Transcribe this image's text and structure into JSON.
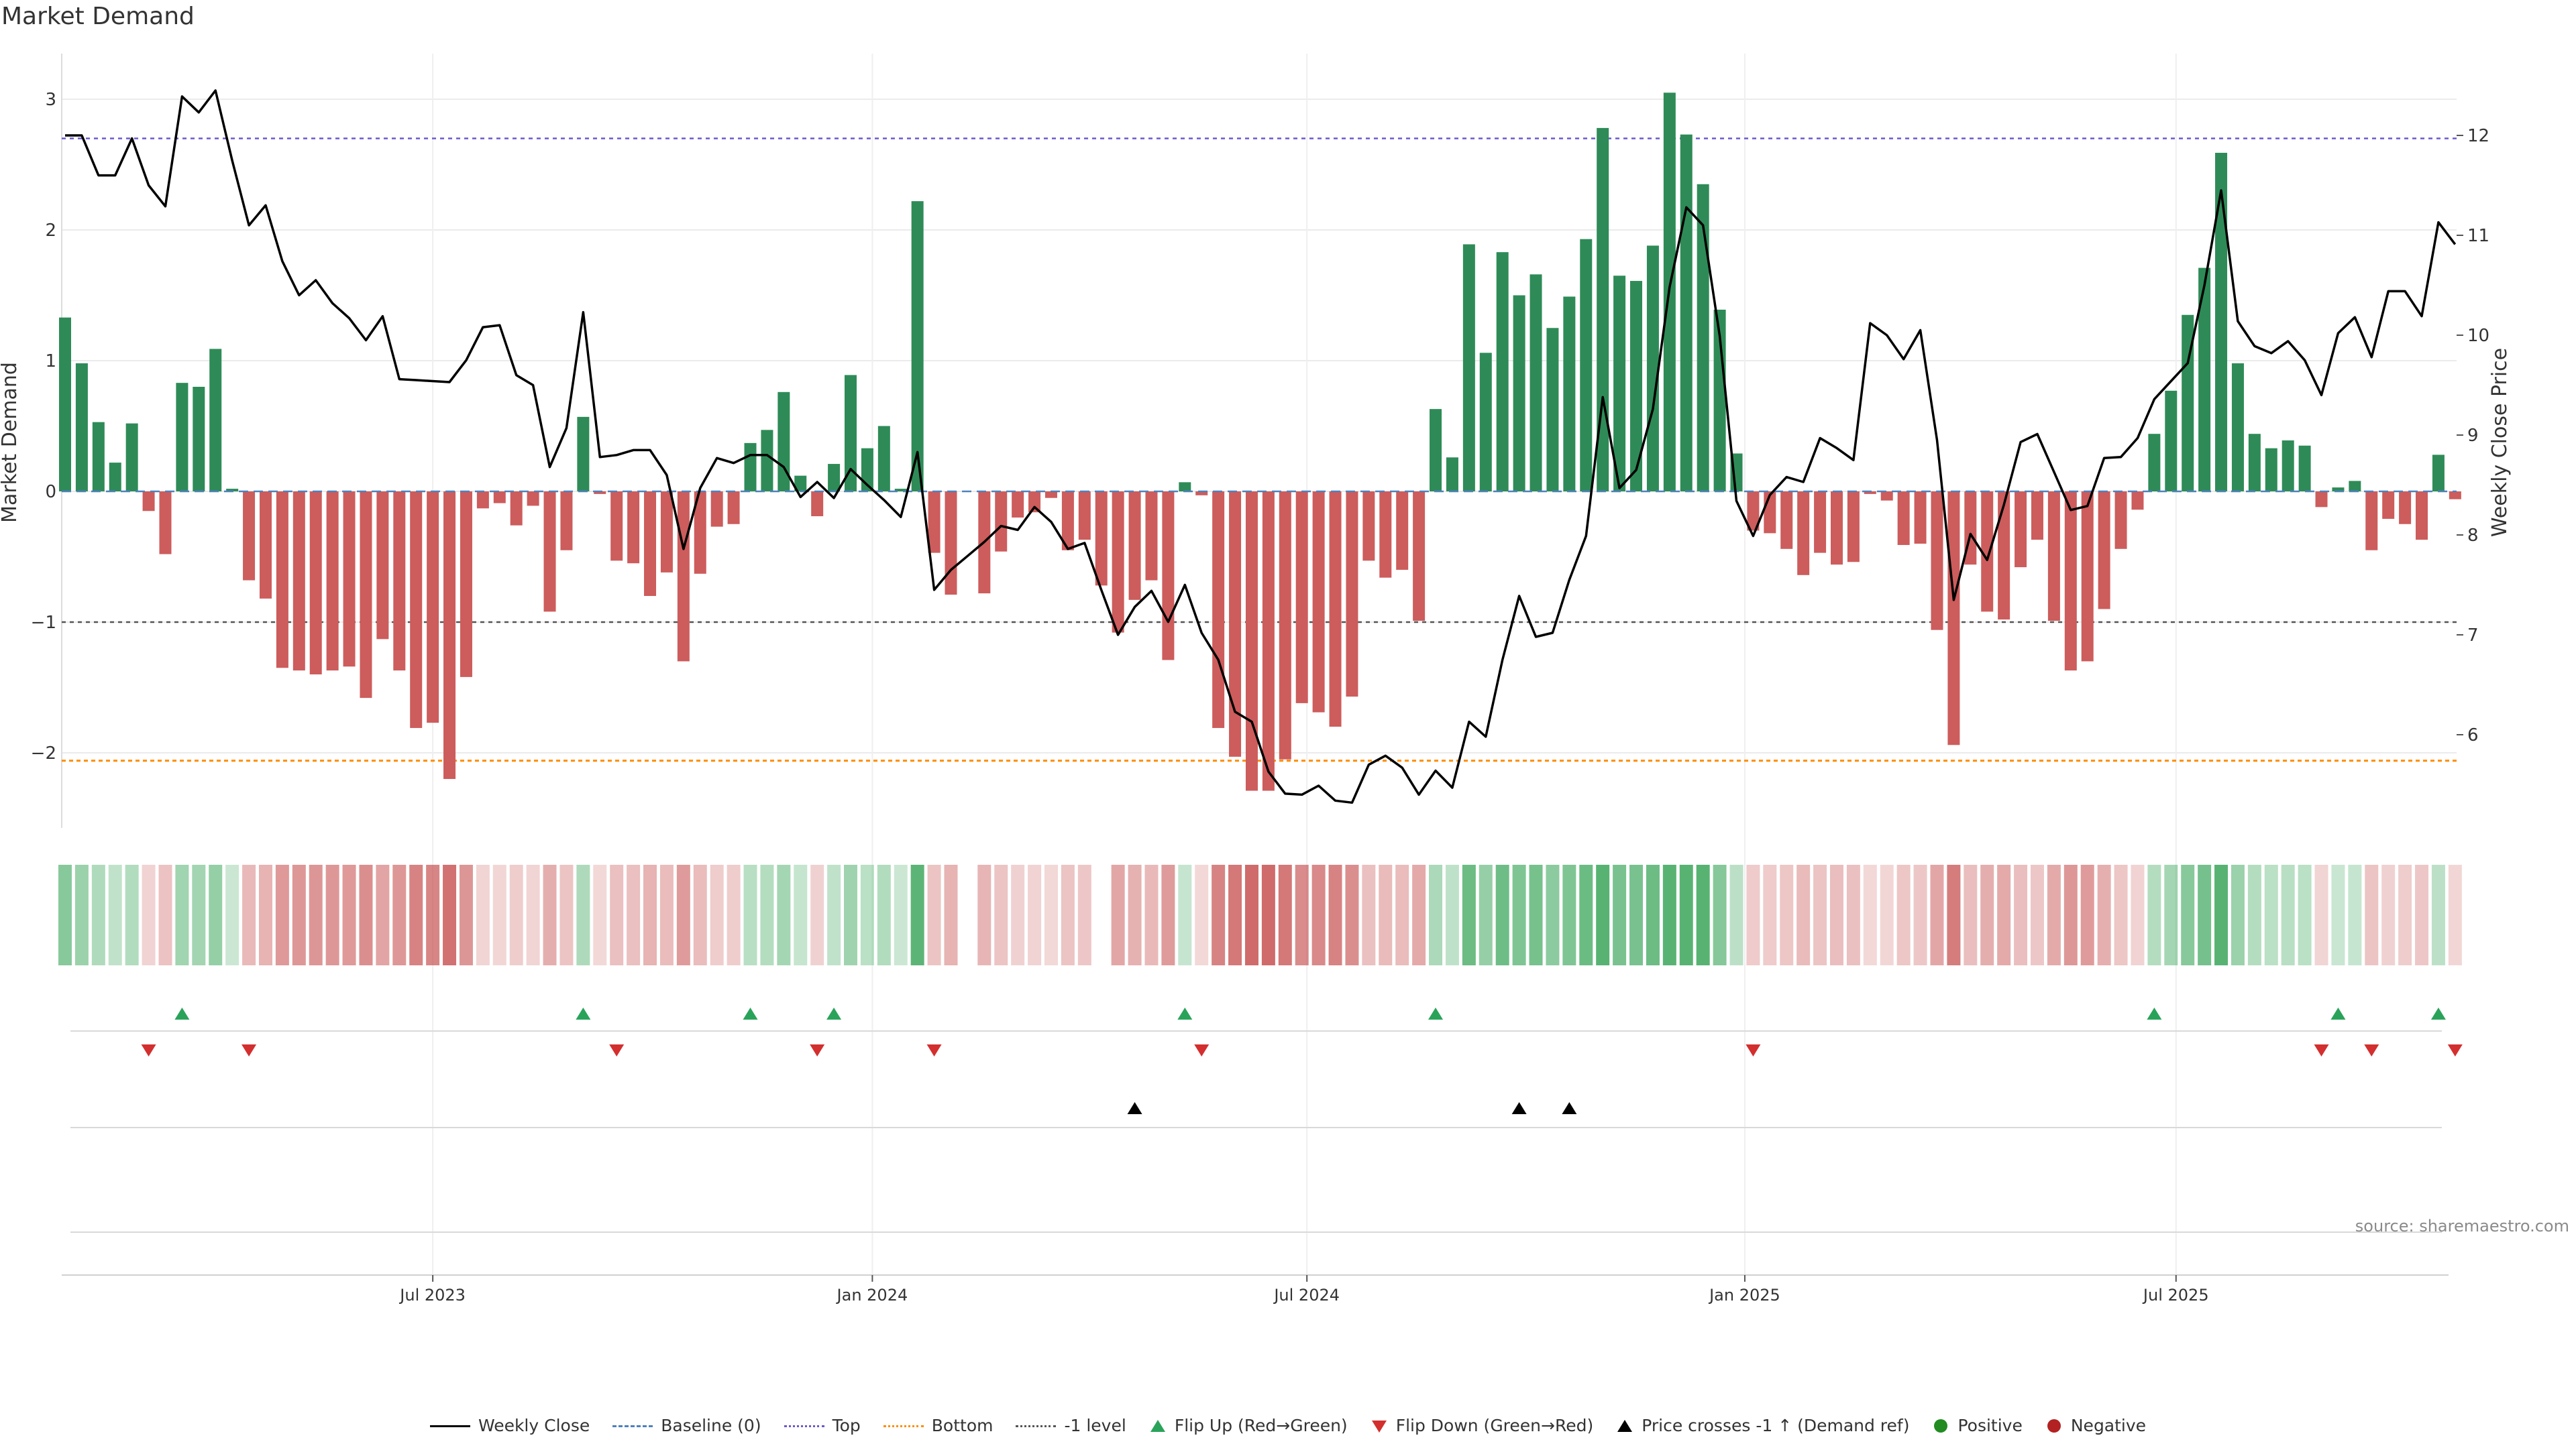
{
  "title": "Market Demand",
  "source": "source: sharemaestro.com",
  "colors": {
    "positive_bar": "#2e8b57",
    "negative_bar": "#cd5c5c",
    "price_line": "#000000",
    "top_line": "#6a5acd",
    "bottom_line": "#ff8c00",
    "minus1_line": "#555555",
    "baseline": "#4f81bd",
    "flip_up": "#2aa35a",
    "flip_down": "#d32f2f",
    "cross_marker": "#000000",
    "positive_dot": "#228b22",
    "negative_dot": "#b22222"
  },
  "legend": [
    {
      "label": "Weekly Close",
      "symbol": "line-solid",
      "color": "#000000"
    },
    {
      "label": "Baseline (0)",
      "symbol": "line-dash",
      "color": "#4f81bd"
    },
    {
      "label": "Top",
      "symbol": "line-dot",
      "color": "#6a5acd"
    },
    {
      "label": "Bottom",
      "symbol": "line-dot",
      "color": "#ff8c00"
    },
    {
      "label": "-1 level",
      "symbol": "line-dot",
      "color": "#555555"
    },
    {
      "label": "Flip Up (Red→Green)",
      "symbol": "triangle-up",
      "color": "#2aa35a"
    },
    {
      "label": "Flip Down (Green→Red)",
      "symbol": "triangle-down",
      "color": "#d32f2f"
    },
    {
      "label": "Price crosses -1 ↑ (Demand ref)",
      "symbol": "triangle-up",
      "color": "#000000"
    },
    {
      "label": "Positive",
      "symbol": "dot",
      "color": "#228b22"
    },
    {
      "label": "Negative",
      "symbol": "dot",
      "color": "#b22222"
    }
  ],
  "chart_data": {
    "type": "bar+line",
    "title": "Market Demand",
    "ylabel": "Market Demand",
    "y2label": "Weekly Close Price",
    "ylim": [
      -2.6,
      3.35
    ],
    "y2lim": [
      5.25,
      12.85
    ],
    "yticks": [
      "−2",
      "−1",
      "0",
      "1",
      "2",
      "3"
    ],
    "ytick_values": [
      -2,
      -1,
      0,
      1,
      2,
      3
    ],
    "y2ticks": [
      "6",
      "7",
      "8",
      "9",
      "10",
      "11",
      "12"
    ],
    "y2tick_values": [
      6,
      7,
      8,
      9,
      10,
      11,
      12
    ],
    "x_range_weeks": [
      0,
      144
    ],
    "xticks": [
      {
        "label": "Jul 2023",
        "week": 22
      },
      {
        "label": "Jan 2024",
        "week": 48.3
      },
      {
        "label": "Jul 2024",
        "week": 74.3
      },
      {
        "label": "Jan 2025",
        "week": 100.5
      },
      {
        "label": "Jul 2025",
        "week": 126.3
      }
    ],
    "reference_lines": {
      "top": 2.7,
      "bottom": -2.06,
      "minus1": -1,
      "baseline": 0
    },
    "demand": [
      1.33,
      0.98,
      0.53,
      0.22,
      0.52,
      -0.15,
      -0.48,
      0.83,
      0.8,
      1.09,
      0.02,
      -0.68,
      -0.82,
      -1.35,
      -1.37,
      -1.4,
      -1.37,
      -1.34,
      -1.58,
      -1.13,
      -1.37,
      -1.81,
      -1.77,
      -2.2,
      -1.42,
      -0.13,
      -0.09,
      -0.26,
      -0.11,
      -0.92,
      -0.45,
      0.57,
      -0.02,
      -0.53,
      -0.55,
      -0.8,
      -0.62,
      -1.3,
      -0.63,
      -0.27,
      -0.25,
      0.37,
      0.47,
      0.76,
      0.12,
      -0.19,
      0.21,
      0.89,
      0.33,
      0.5,
      0.02,
      2.22,
      -0.47,
      -0.79,
      0.0,
      -0.78,
      -0.46,
      -0.2,
      -0.16,
      -0.05,
      -0.45,
      -0.37,
      -0.72,
      -1.08,
      -0.83,
      -0.68,
      -1.29,
      0.07,
      -0.03,
      -1.81,
      -2.03,
      -2.29,
      -2.29,
      -2.05,
      -1.62,
      -1.69,
      -1.8,
      -1.57,
      -0.53,
      -0.66,
      -0.6,
      -0.99,
      0.63,
      0.26,
      1.89,
      1.06,
      1.83,
      1.5,
      1.66,
      1.25,
      1.49,
      1.93,
      2.78,
      1.65,
      1.61,
      1.88,
      3.05,
      2.73,
      2.35,
      1.39,
      0.29,
      -0.3,
      -0.32,
      -0.44,
      -0.64,
      -0.47,
      -0.56,
      -0.54,
      -0.02,
      -0.07,
      -0.41,
      -0.4,
      -1.06,
      -1.94,
      -0.56,
      -0.92,
      -0.98,
      -0.58,
      -0.37,
      -0.99,
      -1.37,
      -1.3,
      -0.9,
      -0.44,
      -0.14,
      0.44,
      0.77,
      1.35,
      1.71,
      2.59,
      0.98,
      0.44,
      0.33,
      0.39,
      0.35,
      -0.12,
      0.03,
      0.08,
      -0.45,
      -0.21,
      -0.25,
      -0.37,
      0.28,
      -0.06
    ],
    "price": [
      12.0,
      12.0,
      11.6,
      11.6,
      11.97,
      11.5,
      11.29,
      12.39,
      12.23,
      12.45,
      11.75,
      11.1,
      11.3,
      10.74,
      10.4,
      10.55,
      10.32,
      10.17,
      9.95,
      10.19,
      9.56,
      9.55,
      9.54,
      9.53,
      9.75,
      10.08,
      10.1,
      9.6,
      9.5,
      8.68,
      9.07,
      10.23,
      8.78,
      8.8,
      8.85,
      8.85,
      8.6,
      7.86,
      8.47,
      8.77,
      8.72,
      8.8,
      8.8,
      8.68,
      8.38,
      8.53,
      8.37,
      8.66,
      8.5,
      8.35,
      8.18,
      8.83,
      7.45,
      7.65,
      7.79,
      7.93,
      8.09,
      8.05,
      8.28,
      8.13,
      7.86,
      7.92,
      7.45,
      7.0,
      7.28,
      7.44,
      7.13,
      7.5,
      7.02,
      6.75,
      6.23,
      6.13,
      5.63,
      5.41,
      5.4,
      5.49,
      5.34,
      5.32,
      5.7,
      5.79,
      5.67,
      5.4,
      5.64,
      5.47,
      6.13,
      5.98,
      6.75,
      7.39,
      6.98,
      7.02,
      7.55,
      7.99,
      9.38,
      8.47,
      8.65,
      9.26,
      10.48,
      11.28,
      11.1,
      9.99,
      8.34,
      7.99,
      8.4,
      8.58,
      8.53,
      8.97,
      8.87,
      8.75,
      10.12,
      10.0,
      9.76,
      10.05,
      8.95,
      7.35,
      8.01,
      7.75,
      8.3,
      8.93,
      9.01,
      8.63,
      8.25,
      8.29,
      8.77,
      8.78,
      8.97,
      9.36,
      9.54,
      9.72,
      10.5,
      11.45,
      10.14,
      9.89,
      9.82,
      9.94,
      9.75,
      9.4,
      10.02,
      10.18,
      9.78,
      10.44,
      10.44,
      10.19,
      11.13,
      10.91
    ],
    "flip_up_weeks": [
      7,
      31,
      41,
      46,
      67,
      82,
      125,
      136,
      142
    ],
    "flip_down_weeks": [
      5,
      11,
      33,
      45,
      52,
      68,
      101,
      135,
      138,
      143
    ],
    "price_cross_weeks": [
      64,
      87,
      90
    ],
    "gap_weeks": [
      54,
      62
    ]
  }
}
